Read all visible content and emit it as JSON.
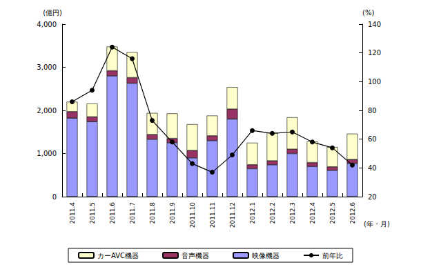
{
  "chart_data": {
    "type": "bar",
    "stacked": true,
    "grid": false,
    "legend": "bottom",
    "categories": [
      "2011.4",
      "2011.5",
      "2011.6",
      "2011.7",
      "2011.8",
      "2011.9",
      "2011.10",
      "2011.11",
      "2011.12",
      "2012.1",
      "2012.2",
      "2012.3",
      "2012.4",
      "2012.5",
      "2012.6"
    ],
    "x_label": "(年・月)",
    "y_label": "(億円)",
    "y2_label": "(%)",
    "ylim": [
      0,
      4000
    ],
    "yticks": [
      0,
      {
        "value": 1000,
        "label": "1,000"
      },
      {
        "value": 2000,
        "label": "2,000"
      },
      {
        "value": 3000,
        "label": "3,000"
      },
      {
        "value": 4000,
        "label": "4,000"
      }
    ],
    "y2lim": [
      20,
      140
    ],
    "y2ticks": [
      20,
      40,
      60,
      80,
      100,
      120,
      140
    ],
    "series": [
      {
        "name": "映像機器",
        "type": "bar",
        "color": "#9999ff",
        "values": [
          1820,
          1740,
          2800,
          2630,
          1330,
          1250,
          900,
          1300,
          1800,
          650,
          740,
          1000,
          700,
          610,
          770
        ]
      },
      {
        "name": "音声機器",
        "type": "bar",
        "color": "#993366",
        "values": [
          150,
          110,
          120,
          130,
          110,
          100,
          170,
          110,
          230,
          90,
          90,
          100,
          90,
          80,
          90
        ]
      },
      {
        "name": "カーAVC機器",
        "type": "bar",
        "color": "#ffffcc",
        "values": [
          230,
          310,
          560,
          590,
          500,
          580,
          610,
          470,
          510,
          510,
          650,
          740,
          490,
          460,
          600
        ]
      },
      {
        "name": "前年比",
        "type": "line",
        "axis": "y2",
        "color": "#000000",
        "marker": "circle",
        "values": [
          86,
          94,
          124,
          116,
          73,
          58,
          43,
          37,
          49,
          66,
          64,
          65,
          58,
          54,
          42
        ]
      }
    ]
  }
}
